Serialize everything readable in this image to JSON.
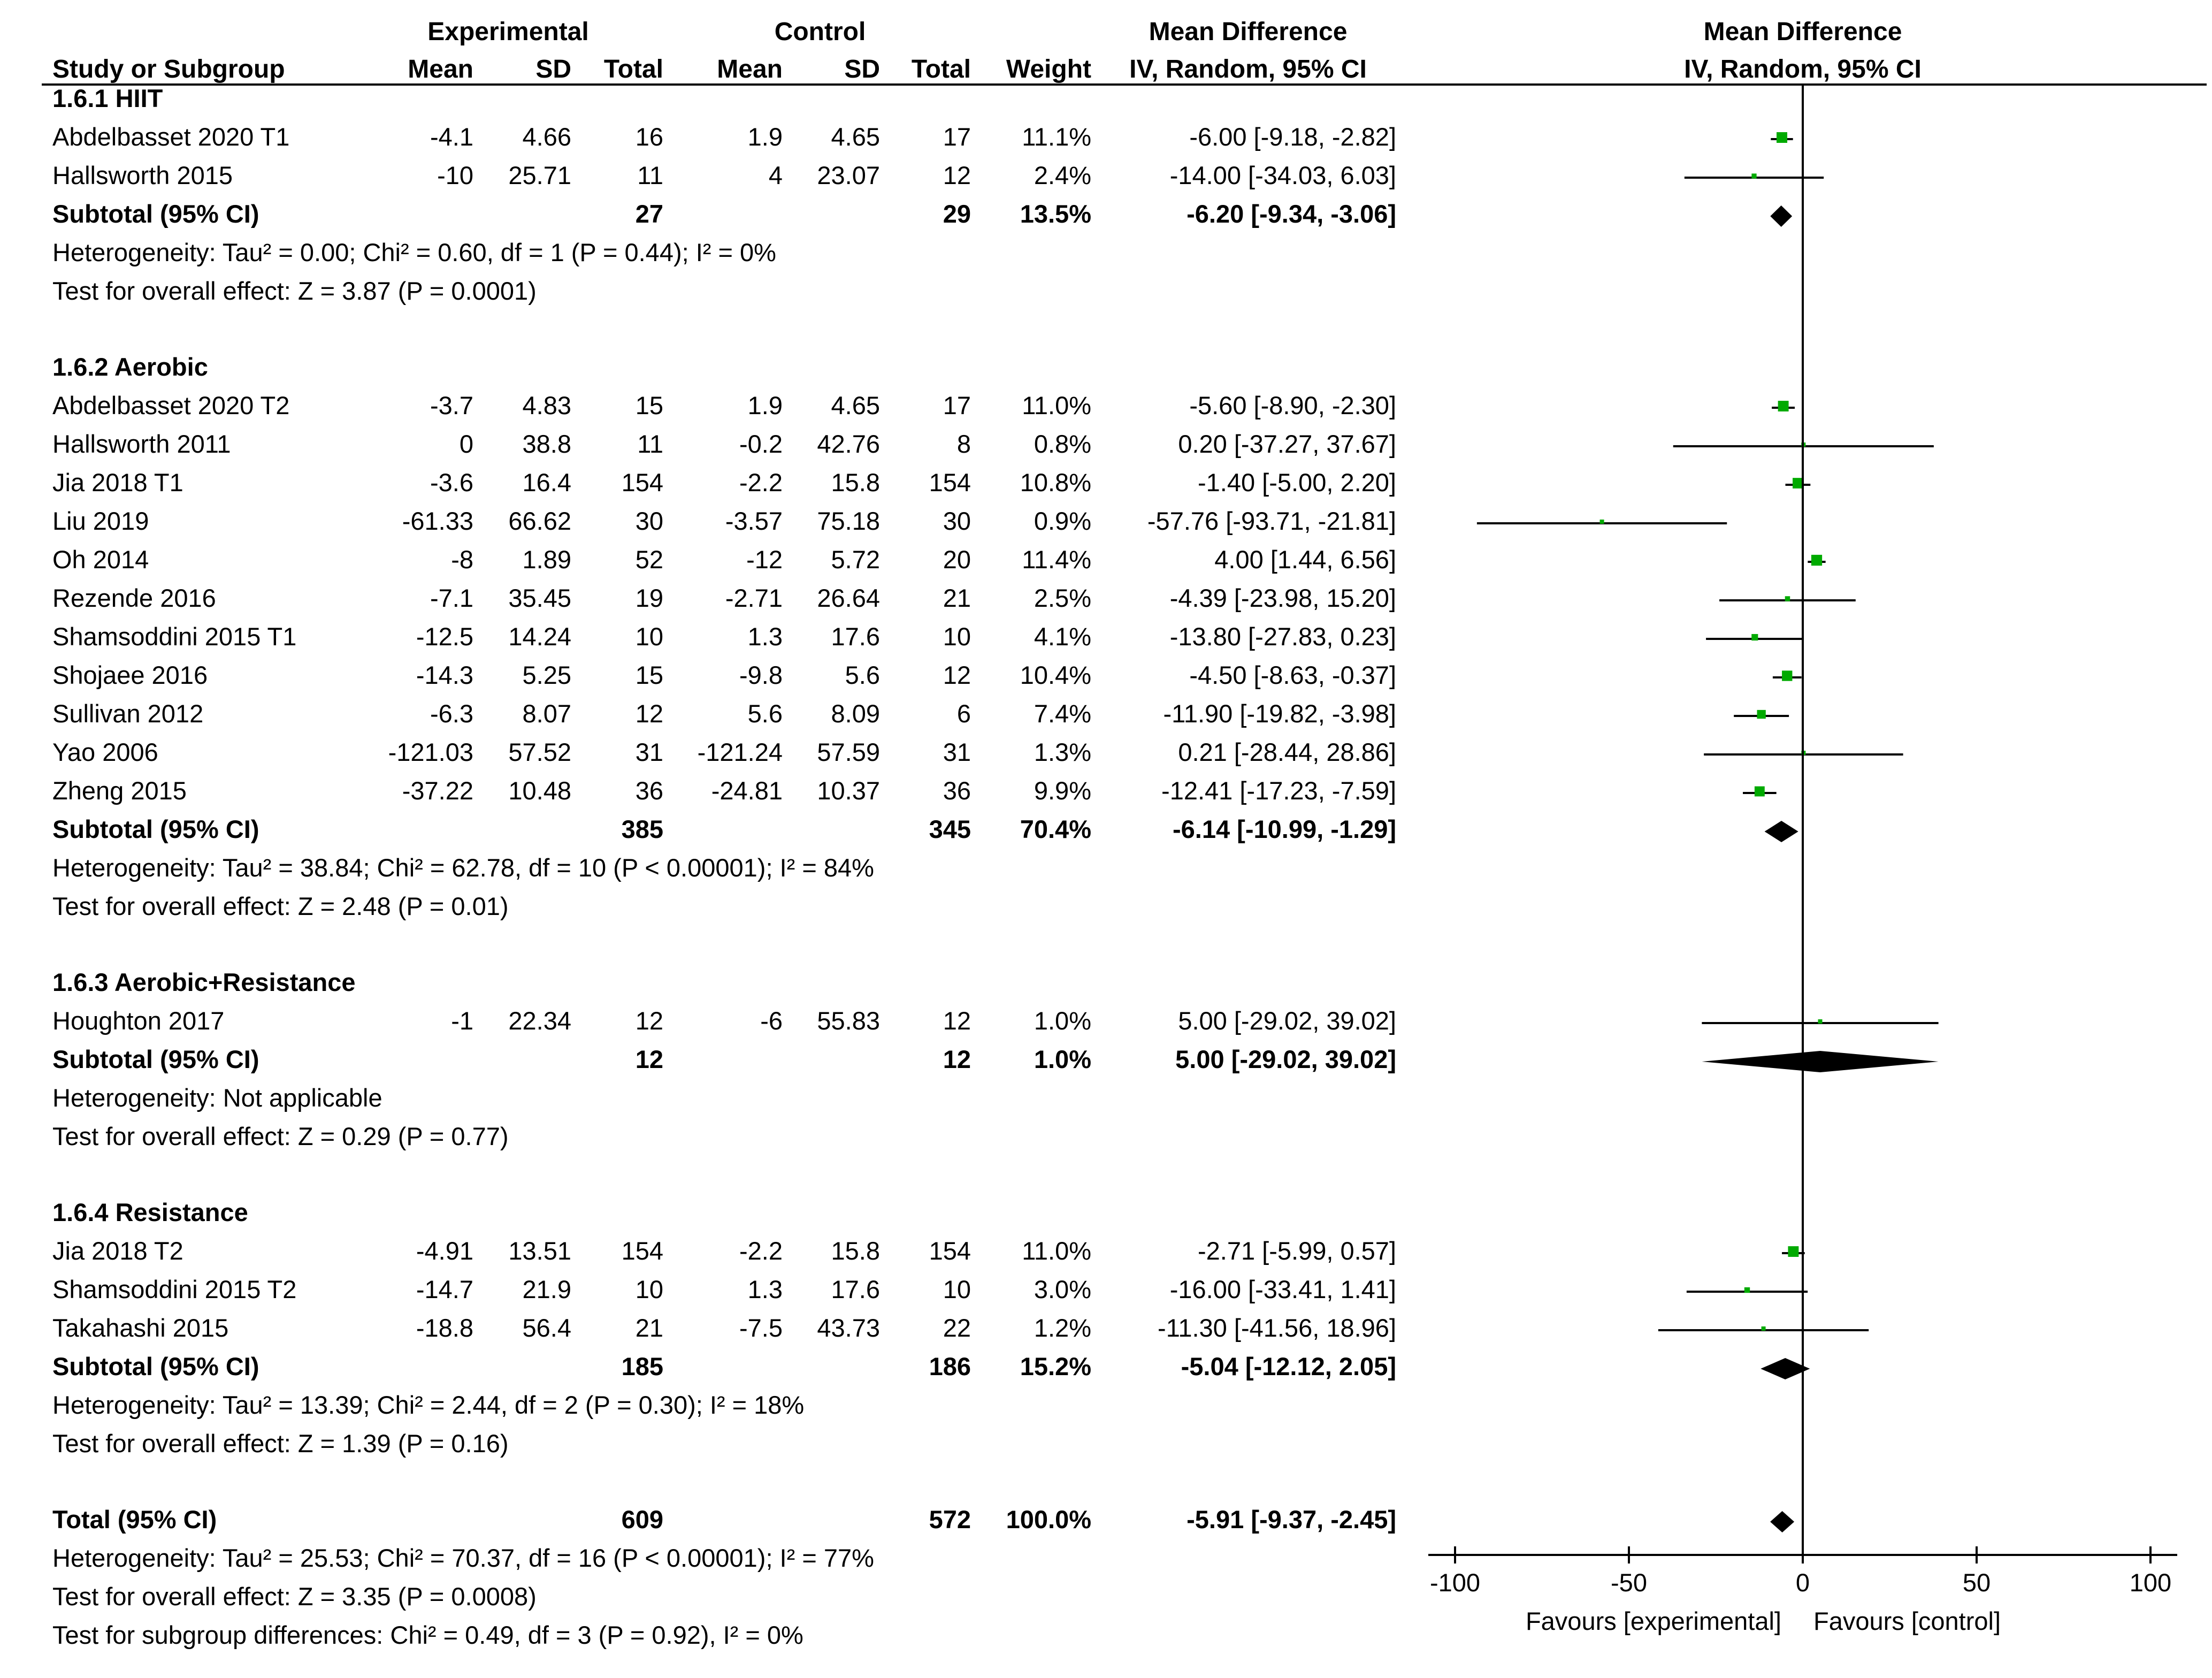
{
  "chart_data": {
    "type": "forest",
    "title": "",
    "headers": {
      "group_experimental": "Experimental",
      "group_control": "Control",
      "group_effect": "Mean Difference",
      "plot_title": "Mean Difference",
      "study": "Study or Subgroup",
      "mean": "Mean",
      "sd": "SD",
      "total": "Total",
      "weight": "Weight",
      "method": "IV, Random, 95% CI",
      "plot_method": "IV, Random, 95% CI"
    },
    "axis": {
      "min": -100,
      "max": 100,
      "ticks": [
        -100,
        -50,
        0,
        50,
        100
      ],
      "tick_labels": [
        "-100",
        "-50",
        "0",
        "50",
        "100"
      ],
      "label_left": "Favours [experimental]",
      "label_right": "Favours [control]"
    },
    "colors": {
      "study_marker": "#00aa00",
      "diamond": "#000000",
      "line": "#000000"
    },
    "subgroups": [
      {
        "title": "1.6.1 HIIT",
        "studies": [
          {
            "name": "Abdelbasset 2020 T1",
            "e_mean": "-4.1",
            "e_sd": "4.66",
            "e_total": "16",
            "c_mean": "1.9",
            "c_sd": "4.65",
            "c_total": "17",
            "weight": "11.1%",
            "ci": "-6.00 [-9.18, -2.82]",
            "md": -6.0,
            "lo": -9.18,
            "hi": -2.82
          },
          {
            "name": "Hallsworth 2015",
            "e_mean": "-10",
            "e_sd": "25.71",
            "e_total": "11",
            "c_mean": "4",
            "c_sd": "23.07",
            "c_total": "12",
            "weight": "2.4%",
            "ci": "-14.00 [-34.03, 6.03]",
            "md": -14.0,
            "lo": -34.03,
            "hi": 6.03
          }
        ],
        "subtotal": {
          "label": "Subtotal (95% CI)",
          "e_total": "27",
          "c_total": "29",
          "weight": "13.5%",
          "ci": "-6.20 [-9.34, -3.06]",
          "md": -6.2,
          "lo": -9.34,
          "hi": -3.06
        },
        "heterogeneity": "Heterogeneity: Tau² = 0.00; Chi² = 0.60, df = 1 (P = 0.44); I² = 0%",
        "overall": "Test for overall effect: Z = 3.87 (P = 0.0001)"
      },
      {
        "title": "1.6.2 Aerobic",
        "studies": [
          {
            "name": "Abdelbasset 2020 T2",
            "e_mean": "-3.7",
            "e_sd": "4.83",
            "e_total": "15",
            "c_mean": "1.9",
            "c_sd": "4.65",
            "c_total": "17",
            "weight": "11.0%",
            "ci": "-5.60 [-8.90, -2.30]",
            "md": -5.6,
            "lo": -8.9,
            "hi": -2.3
          },
          {
            "name": "Hallsworth 2011",
            "e_mean": "0",
            "e_sd": "38.8",
            "e_total": "11",
            "c_mean": "-0.2",
            "c_sd": "42.76",
            "c_total": "8",
            "weight": "0.8%",
            "ci": "0.20 [-37.27, 37.67]",
            "md": 0.2,
            "lo": -37.27,
            "hi": 37.67
          },
          {
            "name": "Jia 2018 T1",
            "e_mean": "-3.6",
            "e_sd": "16.4",
            "e_total": "154",
            "c_mean": "-2.2",
            "c_sd": "15.8",
            "c_total": "154",
            "weight": "10.8%",
            "ci": "-1.40 [-5.00, 2.20]",
            "md": -1.4,
            "lo": -5.0,
            "hi": 2.2
          },
          {
            "name": "Liu 2019",
            "e_mean": "-61.33",
            "e_sd": "66.62",
            "e_total": "30",
            "c_mean": "-3.57",
            "c_sd": "75.18",
            "c_total": "30",
            "weight": "0.9%",
            "ci": "-57.76 [-93.71, -21.81]",
            "md": -57.76,
            "lo": -93.71,
            "hi": -21.81
          },
          {
            "name": "Oh 2014",
            "e_mean": "-8",
            "e_sd": "1.89",
            "e_total": "52",
            "c_mean": "-12",
            "c_sd": "5.72",
            "c_total": "20",
            "weight": "11.4%",
            "ci": "4.00 [1.44, 6.56]",
            "md": 4.0,
            "lo": 1.44,
            "hi": 6.56
          },
          {
            "name": "Rezende 2016",
            "e_mean": "-7.1",
            "e_sd": "35.45",
            "e_total": "19",
            "c_mean": "-2.71",
            "c_sd": "26.64",
            "c_total": "21",
            "weight": "2.5%",
            "ci": "-4.39 [-23.98, 15.20]",
            "md": -4.39,
            "lo": -23.98,
            "hi": 15.2
          },
          {
            "name": "Shamsoddini 2015 T1",
            "e_mean": "-12.5",
            "e_sd": "14.24",
            "e_total": "10",
            "c_mean": "1.3",
            "c_sd": "17.6",
            "c_total": "10",
            "weight": "4.1%",
            "ci": "-13.80 [-27.83, 0.23]",
            "md": -13.8,
            "lo": -27.83,
            "hi": 0.23
          },
          {
            "name": "Shojaee 2016",
            "e_mean": "-14.3",
            "e_sd": "5.25",
            "e_total": "15",
            "c_mean": "-9.8",
            "c_sd": "5.6",
            "c_total": "12",
            "weight": "10.4%",
            "ci": "-4.50 [-8.63, -0.37]",
            "md": -4.5,
            "lo": -8.63,
            "hi": -0.37
          },
          {
            "name": "Sullivan 2012",
            "e_mean": "-6.3",
            "e_sd": "8.07",
            "e_total": "12",
            "c_mean": "5.6",
            "c_sd": "8.09",
            "c_total": "6",
            "weight": "7.4%",
            "ci": "-11.90 [-19.82, -3.98]",
            "md": -11.9,
            "lo": -19.82,
            "hi": -3.98
          },
          {
            "name": "Yao 2006",
            "e_mean": "-121.03",
            "e_sd": "57.52",
            "e_total": "31",
            "c_mean": "-121.24",
            "c_sd": "57.59",
            "c_total": "31",
            "weight": "1.3%",
            "ci": "0.21 [-28.44, 28.86]",
            "md": 0.21,
            "lo": -28.44,
            "hi": 28.86
          },
          {
            "name": "Zheng  2015",
            "e_mean": "-37.22",
            "e_sd": "10.48",
            "e_total": "36",
            "c_mean": "-24.81",
            "c_sd": "10.37",
            "c_total": "36",
            "weight": "9.9%",
            "ci": "-12.41 [-17.23, -7.59]",
            "md": -12.41,
            "lo": -17.23,
            "hi": -7.59
          }
        ],
        "subtotal": {
          "label": "Subtotal (95% CI)",
          "e_total": "385",
          "c_total": "345",
          "weight": "70.4%",
          "ci": "-6.14 [-10.99, -1.29]",
          "md": -6.14,
          "lo": -10.99,
          "hi": -1.29
        },
        "heterogeneity": "Heterogeneity: Tau² = 38.84; Chi² = 62.78, df = 10 (P < 0.00001); I² = 84%",
        "overall": "Test for overall effect: Z = 2.48 (P = 0.01)"
      },
      {
        "title": "1.6.3 Aerobic+Resistance",
        "studies": [
          {
            "name": "Houghton 2017",
            "e_mean": "-1",
            "e_sd": "22.34",
            "e_total": "12",
            "c_mean": "-6",
            "c_sd": "55.83",
            "c_total": "12",
            "weight": "1.0%",
            "ci": "5.00 [-29.02, 39.02]",
            "md": 5.0,
            "lo": -29.02,
            "hi": 39.02
          }
        ],
        "subtotal": {
          "label": "Subtotal (95% CI)",
          "e_total": "12",
          "c_total": "12",
          "weight": "1.0%",
          "ci": "5.00 [-29.02, 39.02]",
          "md": 5.0,
          "lo": -29.02,
          "hi": 39.02
        },
        "heterogeneity": "Heterogeneity: Not applicable",
        "overall": "Test for overall effect: Z = 0.29 (P = 0.77)"
      },
      {
        "title": "1.6.4 Resistance",
        "studies": [
          {
            "name": "Jia 2018 T2",
            "e_mean": "-4.91",
            "e_sd": "13.51",
            "e_total": "154",
            "c_mean": "-2.2",
            "c_sd": "15.8",
            "c_total": "154",
            "weight": "11.0%",
            "ci": "-2.71 [-5.99, 0.57]",
            "md": -2.71,
            "lo": -5.99,
            "hi": 0.57
          },
          {
            "name": "Shamsoddini 2015 T2",
            "e_mean": "-14.7",
            "e_sd": "21.9",
            "e_total": "10",
            "c_mean": "1.3",
            "c_sd": "17.6",
            "c_total": "10",
            "weight": "3.0%",
            "ci": "-16.00 [-33.41, 1.41]",
            "md": -16.0,
            "lo": -33.41,
            "hi": 1.41
          },
          {
            "name": "Takahashi 2015",
            "e_mean": "-18.8",
            "e_sd": "56.4",
            "e_total": "21",
            "c_mean": "-7.5",
            "c_sd": "43.73",
            "c_total": "22",
            "weight": "1.2%",
            "ci": "-11.30 [-41.56, 18.96]",
            "md": -11.3,
            "lo": -41.56,
            "hi": 18.96
          }
        ],
        "subtotal": {
          "label": "Subtotal (95% CI)",
          "e_total": "185",
          "c_total": "186",
          "weight": "15.2%",
          "ci": "-5.04 [-12.12, 2.05]",
          "md": -5.04,
          "lo": -12.12,
          "hi": 2.05
        },
        "heterogeneity": "Heterogeneity: Tau² = 13.39; Chi² = 2.44, df = 2 (P = 0.30); I² = 18%",
        "overall": "Test for overall effect: Z = 1.39 (P = 0.16)"
      }
    ],
    "total": {
      "label": "Total (95% CI)",
      "e_total": "609",
      "c_total": "572",
      "weight": "100.0%",
      "ci": "-5.91 [-9.37, -2.45]",
      "md": -5.91,
      "lo": -9.37,
      "hi": -2.45,
      "heterogeneity": "Heterogeneity: Tau² = 25.53; Chi² = 70.37, df = 16 (P < 0.00001); I² = 77%",
      "overall": "Test for overall effect: Z = 3.35 (P = 0.0008)",
      "subgroup_diff": "Test for subgroup differences: Chi² = 0.49, df = 3 (P = 0.92), I² = 0%"
    }
  }
}
